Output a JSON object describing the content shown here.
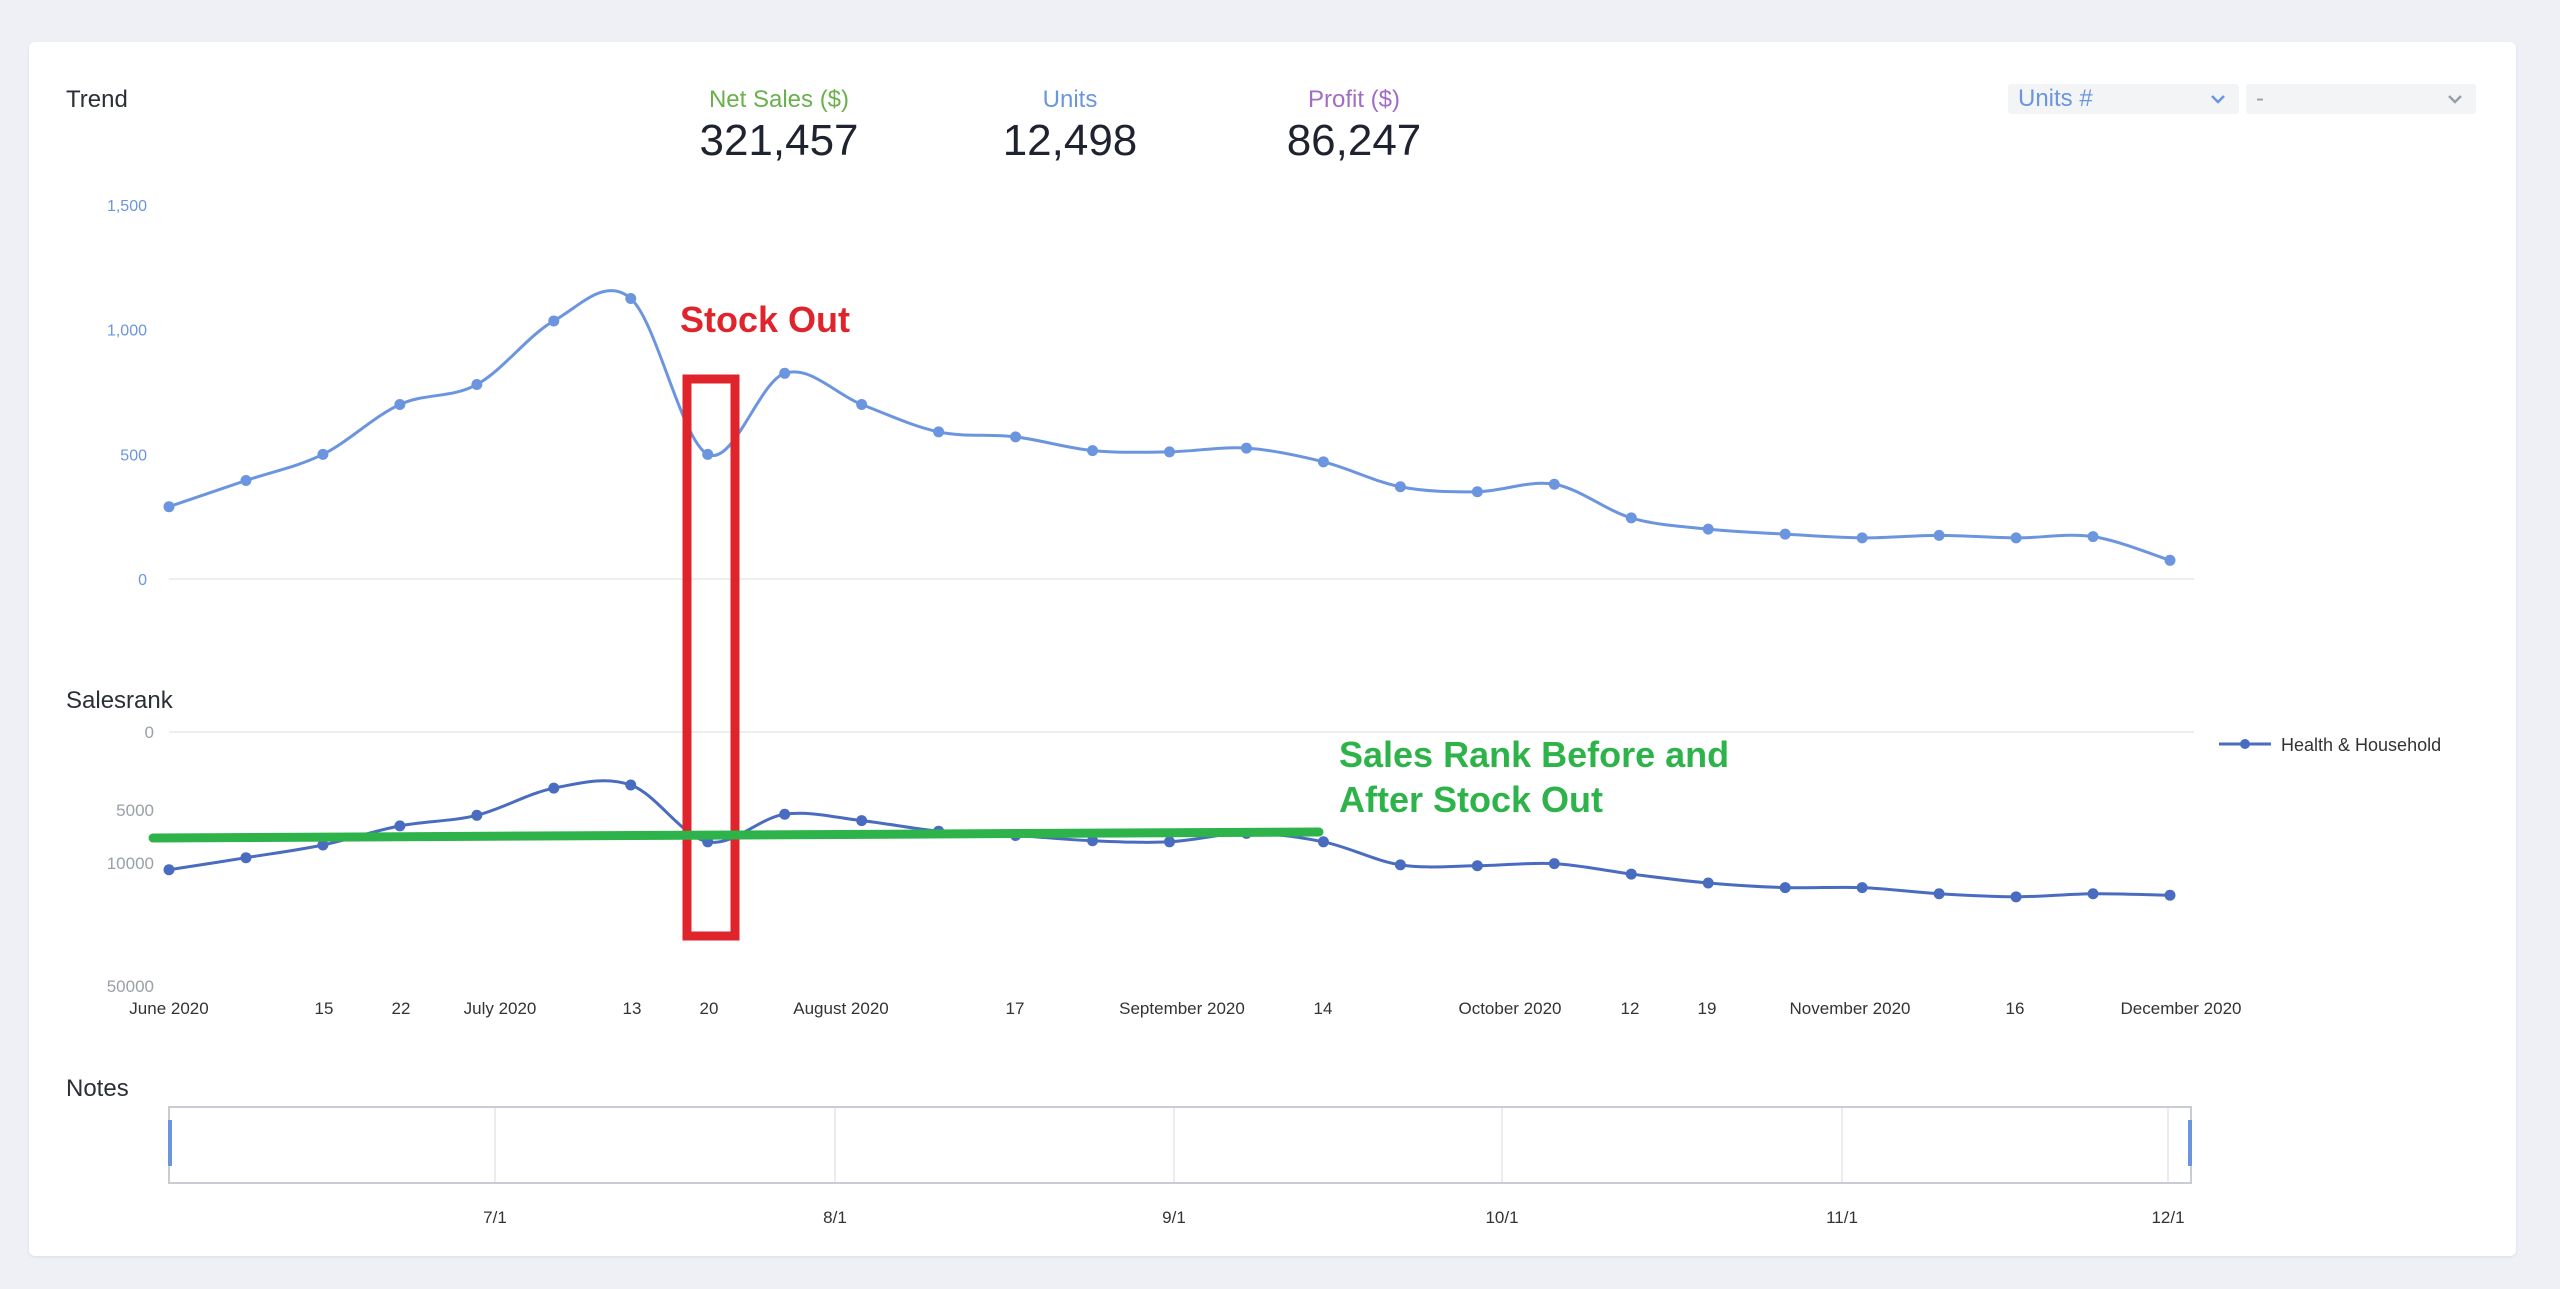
{
  "trend": {
    "title": "Trend",
    "kpis": [
      {
        "label": "Net Sales ($)",
        "value": "321,457",
        "color": "#6ab04c"
      },
      {
        "label": "Units",
        "value": "12,498",
        "color": "#6b95df"
      },
      {
        "label": "Profit ($)",
        "value": "86,247",
        "color": "#a06cc4"
      }
    ],
    "metric_select": {
      "value": "Units #"
    },
    "compare_select": {
      "value": "-"
    }
  },
  "chart_data": [
    {
      "type": "line",
      "name": "units-trend",
      "ylim": [
        0,
        1500
      ],
      "y_ticks": [
        "1,500",
        "1,000",
        "500",
        "0"
      ],
      "color": "#6b95df",
      "values": [
        290,
        395,
        500,
        700,
        780,
        1035,
        1125,
        500,
        825,
        700,
        590,
        570,
        515,
        510,
        525,
        470,
        370,
        350,
        380,
        245,
        200,
        180,
        165,
        175,
        165,
        170,
        75
      ]
    },
    {
      "type": "line",
      "name": "salesrank",
      "title": "Salesrank",
      "y_ticks": [
        "0",
        "5000",
        "10000",
        "50000"
      ],
      "series": [
        {
          "name": "Health & Household",
          "color": "#4a6cc0"
        }
      ],
      "values": [
        12200,
        9500,
        8300,
        6500,
        5500,
        3600,
        3400,
        8000,
        5400,
        6000,
        7000,
        7400,
        7900,
        8000,
        7200,
        8000,
        10600,
        10900,
        10200,
        13600,
        16500,
        18000,
        18000,
        20000,
        21000,
        20000,
        20500
      ]
    }
  ],
  "x_axis": {
    "labels": [
      "June 2020",
      "15",
      "22",
      "July 2020",
      "13",
      "20",
      "August 2020",
      "17",
      "September 2020",
      "14",
      "October 2020",
      "12",
      "19",
      "November 2020",
      "16",
      "December 2020"
    ]
  },
  "annotations": {
    "stock_out_label": "Stock Out",
    "stock_out_color": "#e0242b",
    "rank_line_1": "Sales Rank Before and",
    "rank_line_2": "After Stock Out",
    "rank_color": "#2eb34a"
  },
  "notes": {
    "title": "Notes",
    "ticks": [
      "7/1",
      "8/1",
      "9/1",
      "10/1",
      "11/1",
      "12/1"
    ]
  }
}
